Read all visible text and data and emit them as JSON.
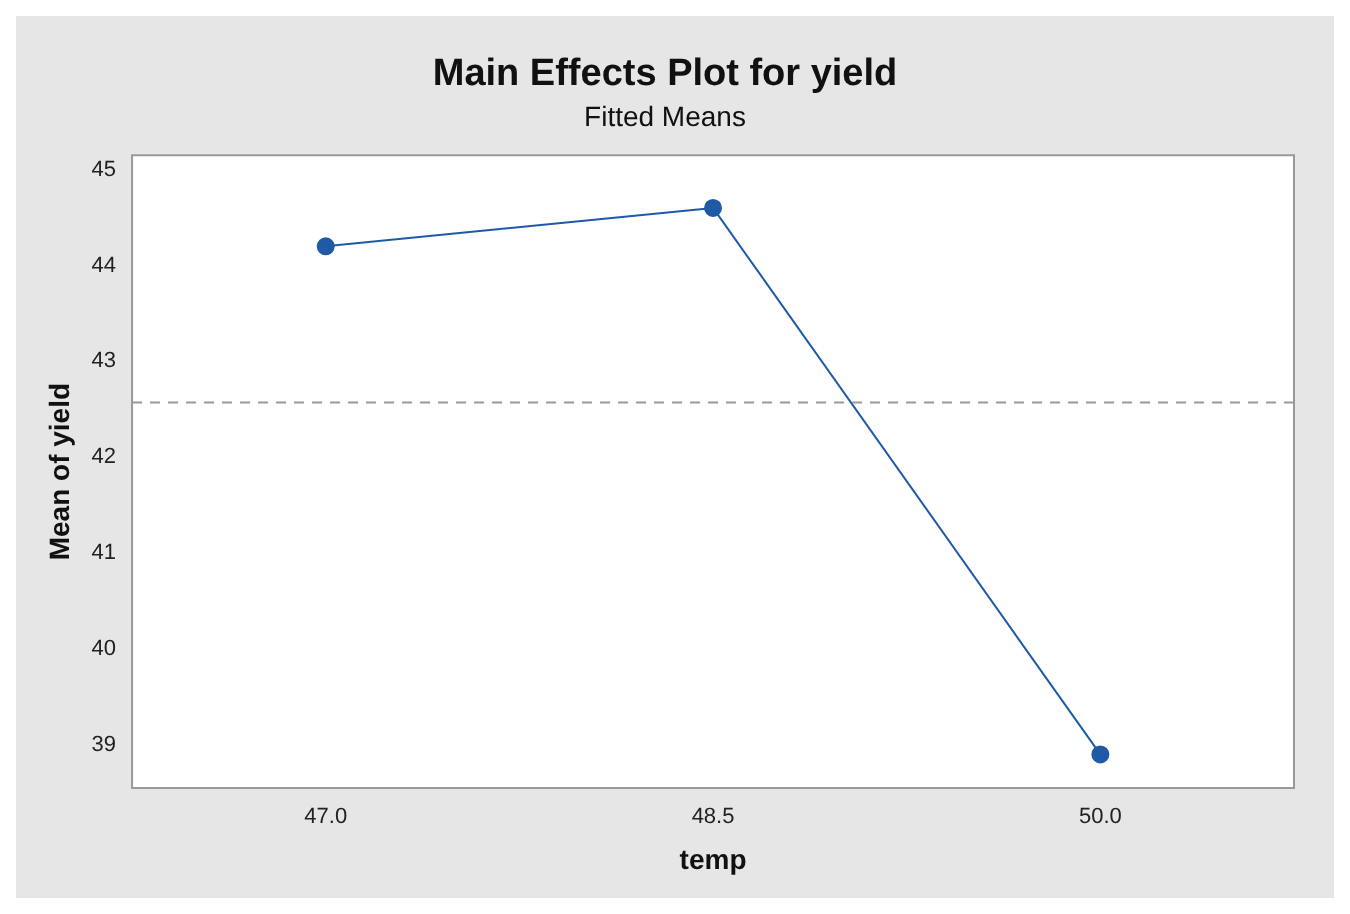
{
  "chart_data": {
    "type": "line",
    "title": "Main Effects Plot for yield",
    "subtitle": "Fitted Means",
    "xlabel": "temp",
    "ylabel": "Mean of yield",
    "categories": [
      "47.0",
      "48.5",
      "50.0"
    ],
    "series": [
      {
        "color": "#1f5aa6",
        "values": [
          44.2,
          44.6,
          38.9
        ]
      }
    ],
    "ylim": [
      38.55,
      45.15
    ],
    "yticks": [
      39,
      40,
      41,
      42,
      43,
      44,
      45
    ],
    "ref_lines": [
      {
        "axis": "y",
        "value": 42.57,
        "color": "#999999",
        "line_style": "dashed"
      }
    ],
    "grid": false,
    "legend": false,
    "marker": "circle",
    "line_style": "solid"
  }
}
